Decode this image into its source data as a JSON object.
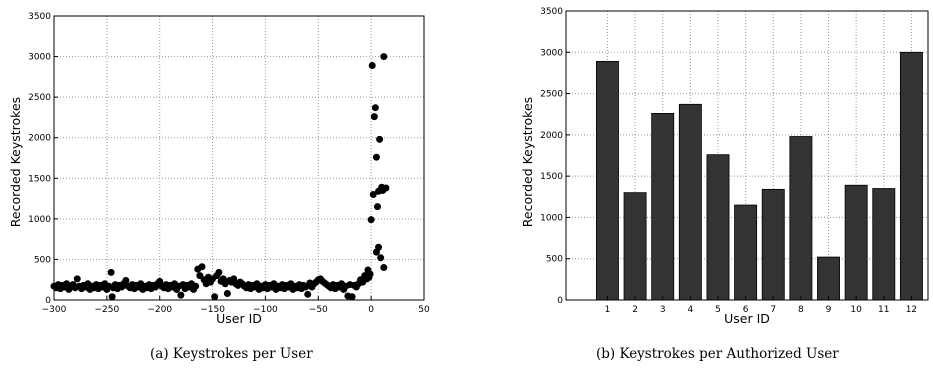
{
  "chart_data": [
    {
      "type": "scatter",
      "caption": "(a)  Keystrokes per User",
      "xlabel": "User ID",
      "ylabel": "Recorded Keystrokes",
      "xlim": [
        -300,
        50
      ],
      "ylim": [
        0,
        3500
      ],
      "xticks": [
        -300,
        -250,
        -200,
        -150,
        -100,
        -50,
        0,
        50
      ],
      "xtick_labels": [
        "−300",
        "−250",
        "−200",
        "−150",
        "−100",
        "−50",
        "0",
        "50"
      ],
      "yticks": [
        0,
        500,
        1000,
        1500,
        2000,
        2500,
        3000,
        3500
      ],
      "grid": true,
      "marker_color": "#000000",
      "points": [
        [
          -300,
          170
        ],
        [
          -298,
          150
        ],
        [
          -296,
          190
        ],
        [
          -294,
          140
        ],
        [
          -292,
          180
        ],
        [
          -290,
          160
        ],
        [
          -288,
          200
        ],
        [
          -286,
          130
        ],
        [
          -284,
          170
        ],
        [
          -282,
          190
        ],
        [
          -280,
          150
        ],
        [
          -278,
          260
        ],
        [
          -276,
          170
        ],
        [
          -274,
          140
        ],
        [
          -272,
          180
        ],
        [
          -270,
          160
        ],
        [
          -268,
          200
        ],
        [
          -266,
          130
        ],
        [
          -264,
          170
        ],
        [
          -262,
          150
        ],
        [
          -260,
          190
        ],
        [
          -258,
          140
        ],
        [
          -256,
          180
        ],
        [
          -254,
          160
        ],
        [
          -252,
          200
        ],
        [
          -250,
          130
        ],
        [
          -248,
          170
        ],
        [
          -246,
          340
        ],
        [
          -245,
          40
        ],
        [
          -244,
          150
        ],
        [
          -242,
          190
        ],
        [
          -240,
          140
        ],
        [
          -238,
          180
        ],
        [
          -236,
          160
        ],
        [
          -234,
          200
        ],
        [
          -232,
          240
        ],
        [
          -230,
          170
        ],
        [
          -228,
          150
        ],
        [
          -226,
          190
        ],
        [
          -224,
          140
        ],
        [
          -222,
          180
        ],
        [
          -220,
          160
        ],
        [
          -218,
          200
        ],
        [
          -216,
          130
        ],
        [
          -214,
          170
        ],
        [
          -212,
          150
        ],
        [
          -210,
          190
        ],
        [
          -208,
          140
        ],
        [
          -206,
          180
        ],
        [
          -204,
          160
        ],
        [
          -202,
          200
        ],
        [
          -200,
          230
        ],
        [
          -198,
          170
        ],
        [
          -196,
          150
        ],
        [
          -194,
          190
        ],
        [
          -192,
          140
        ],
        [
          -190,
          180
        ],
        [
          -188,
          160
        ],
        [
          -186,
          200
        ],
        [
          -184,
          130
        ],
        [
          -182,
          170
        ],
        [
          -180,
          60
        ],
        [
          -178,
          190
        ],
        [
          -176,
          140
        ],
        [
          -174,
          180
        ],
        [
          -172,
          160
        ],
        [
          -170,
          200
        ],
        [
          -168,
          130
        ],
        [
          -166,
          170
        ],
        [
          -164,
          380
        ],
        [
          -162,
          300
        ],
        [
          -160,
          410
        ],
        [
          -158,
          250
        ],
        [
          -156,
          200
        ],
        [
          -154,
          280
        ],
        [
          -152,
          220
        ],
        [
          -150,
          260
        ],
        [
          -148,
          40
        ],
        [
          -146,
          300
        ],
        [
          -144,
          340
        ],
        [
          -142,
          230
        ],
        [
          -140,
          260
        ],
        [
          -138,
          200
        ],
        [
          -136,
          80
        ],
        [
          -134,
          240
        ],
        [
          -132,
          220
        ],
        [
          -130,
          260
        ],
        [
          -128,
          200
        ],
        [
          -126,
          180
        ],
        [
          -124,
          220
        ],
        [
          -122,
          200
        ],
        [
          -120,
          170
        ],
        [
          -118,
          150
        ],
        [
          -116,
          190
        ],
        [
          -114,
          140
        ],
        [
          -112,
          180
        ],
        [
          -110,
          160
        ],
        [
          -108,
          200
        ],
        [
          -106,
          130
        ],
        [
          -104,
          170
        ],
        [
          -102,
          150
        ],
        [
          -100,
          190
        ],
        [
          -98,
          140
        ],
        [
          -96,
          180
        ],
        [
          -94,
          160
        ],
        [
          -92,
          200
        ],
        [
          -90,
          130
        ],
        [
          -88,
          170
        ],
        [
          -86,
          150
        ],
        [
          -84,
          190
        ],
        [
          -82,
          140
        ],
        [
          -80,
          180
        ],
        [
          -78,
          160
        ],
        [
          -76,
          200
        ],
        [
          -74,
          130
        ],
        [
          -72,
          170
        ],
        [
          -70,
          150
        ],
        [
          -68,
          190
        ],
        [
          -66,
          140
        ],
        [
          -64,
          180
        ],
        [
          -62,
          160
        ],
        [
          -60,
          70
        ],
        [
          -58,
          210
        ],
        [
          -56,
          160
        ],
        [
          -54,
          200
        ],
        [
          -52,
          220
        ],
        [
          -50,
          250
        ],
        [
          -48,
          260
        ],
        [
          -46,
          230
        ],
        [
          -44,
          210
        ],
        [
          -42,
          190
        ],
        [
          -40,
          170
        ],
        [
          -38,
          150
        ],
        [
          -36,
          190
        ],
        [
          -34,
          140
        ],
        [
          -32,
          180
        ],
        [
          -30,
          160
        ],
        [
          -28,
          200
        ],
        [
          -26,
          130
        ],
        [
          -24,
          170
        ],
        [
          -22,
          50
        ],
        [
          -20,
          190
        ],
        [
          -18,
          40
        ],
        [
          -16,
          180
        ],
        [
          -14,
          160
        ],
        [
          -12,
          200
        ],
        [
          -10,
          250
        ],
        [
          -8,
          220
        ],
        [
          -6,
          300
        ],
        [
          -4,
          260
        ],
        [
          -3,
          370
        ],
        [
          -2,
          280
        ],
        [
          0,
          990
        ],
        [
          1,
          2890
        ],
        [
          2,
          1300
        ],
        [
          3,
          2260
        ],
        [
          4,
          2370
        ],
        [
          5,
          1760
        ],
        [
          6,
          1150
        ],
        [
          7,
          1340
        ],
        [
          8,
          1980
        ],
        [
          9,
          520
        ],
        [
          10,
          1390
        ],
        [
          11,
          1350
        ],
        [
          12,
          3000
        ],
        [
          5,
          590
        ],
        [
          7,
          650
        ],
        [
          12,
          400
        ],
        [
          14,
          1380
        ],
        [
          -1,
          320
        ]
      ]
    },
    {
      "type": "bar",
      "caption": "(b)  Keystrokes per Authorized User",
      "xlabel": "User ID",
      "ylabel": "Recorded Keystrokes",
      "categories": [
        "1",
        "2",
        "3",
        "4",
        "5",
        "6",
        "7",
        "8",
        "9",
        "10",
        "11",
        "12"
      ],
      "values": [
        2890,
        1300,
        2260,
        2370,
        1760,
        1150,
        1340,
        1980,
        520,
        1390,
        1350,
        3000
      ],
      "ylim": [
        0,
        3500
      ],
      "yticks": [
        0,
        500,
        1000,
        1500,
        2000,
        2500,
        3000,
        3500
      ],
      "grid": true,
      "bar_color": "#333333"
    }
  ]
}
